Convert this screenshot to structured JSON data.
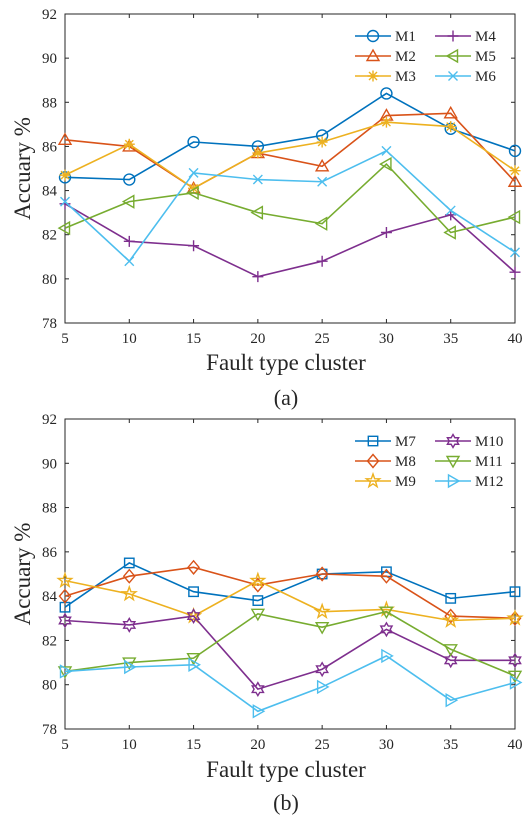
{
  "chart_data": [
    {
      "type": "line",
      "panel_label": "(a)",
      "xlabel": "Fault type cluster",
      "ylabel": "Accuary %",
      "xlim": [
        5,
        40
      ],
      "ylim": [
        78,
        92
      ],
      "x": [
        5,
        10,
        15,
        20,
        25,
        30,
        35,
        40
      ],
      "xticks": [
        "5",
        "10",
        "15",
        "20",
        "25",
        "30",
        "35",
        "40"
      ],
      "yticks": [
        "78",
        "80",
        "82",
        "84",
        "86",
        "88",
        "90",
        "92"
      ],
      "legend": {
        "placement": "top-right",
        "columns": 2
      },
      "grid": false,
      "series": [
        {
          "name": "M1",
          "marker": "circle",
          "color": "#0072BD",
          "values": [
            84.6,
            84.5,
            86.2,
            86.0,
            86.5,
            88.4,
            86.8,
            85.8
          ]
        },
        {
          "name": "M2",
          "marker": "triangle-up",
          "color": "#D95319",
          "values": [
            86.3,
            86.0,
            84.1,
            85.7,
            85.1,
            87.4,
            87.5,
            84.4
          ]
        },
        {
          "name": "M3",
          "marker": "asterisk",
          "color": "#EDB120",
          "values": [
            84.7,
            86.1,
            84.1,
            85.7,
            86.2,
            87.1,
            86.9,
            84.9
          ]
        },
        {
          "name": "M4",
          "marker": "plus",
          "color": "#7E2F8E",
          "values": [
            83.4,
            81.7,
            81.5,
            80.1,
            80.8,
            82.1,
            82.9,
            80.3
          ]
        },
        {
          "name": "M5",
          "marker": "triangle-left",
          "color": "#77AC30",
          "values": [
            82.3,
            83.5,
            83.9,
            83.0,
            82.5,
            85.2,
            82.1,
            82.8
          ]
        },
        {
          "name": "M6",
          "marker": "x",
          "color": "#4DBEEE",
          "values": [
            83.5,
            80.8,
            84.8,
            84.5,
            84.4,
            85.8,
            83.1,
            81.2
          ]
        }
      ]
    },
    {
      "type": "line",
      "panel_label": "(b)",
      "xlabel": "Fault type cluster",
      "ylabel": "Accuary %",
      "xlim": [
        5,
        40
      ],
      "ylim": [
        78,
        92
      ],
      "x": [
        5,
        10,
        15,
        20,
        25,
        30,
        35,
        40
      ],
      "xticks": [
        "5",
        "10",
        "15",
        "20",
        "25",
        "30",
        "35",
        "40"
      ],
      "yticks": [
        "78",
        "80",
        "82",
        "84",
        "86",
        "88",
        "90",
        "92"
      ],
      "legend": {
        "placement": "top-right",
        "columns": 2
      },
      "grid": false,
      "series": [
        {
          "name": "M7",
          "marker": "square",
          "color": "#0072BD",
          "values": [
            83.5,
            85.5,
            84.2,
            83.8,
            85.0,
            85.1,
            83.9,
            84.2
          ]
        },
        {
          "name": "M8",
          "marker": "diamond",
          "color": "#D95319",
          "values": [
            84.0,
            84.9,
            85.3,
            84.5,
            85.0,
            84.9,
            83.1,
            83.0
          ]
        },
        {
          "name": "M9",
          "marker": "pentagram",
          "color": "#EDB120",
          "values": [
            84.7,
            84.1,
            83.1,
            84.7,
            83.3,
            83.4,
            82.9,
            83.0
          ]
        },
        {
          "name": "M10",
          "marker": "hexagram",
          "color": "#7E2F8E",
          "values": [
            82.9,
            82.7,
            83.1,
            79.8,
            80.7,
            82.5,
            81.1,
            81.1
          ]
        },
        {
          "name": "M11",
          "marker": "triangle-down",
          "color": "#77AC30",
          "values": [
            80.6,
            81.0,
            81.2,
            83.2,
            82.6,
            83.3,
            81.6,
            80.4
          ]
        },
        {
          "name": "M12",
          "marker": "triangle-right",
          "color": "#4DBEEE",
          "values": [
            80.6,
            80.8,
            80.9,
            78.8,
            79.9,
            81.3,
            79.3,
            80.1
          ]
        }
      ]
    }
  ]
}
